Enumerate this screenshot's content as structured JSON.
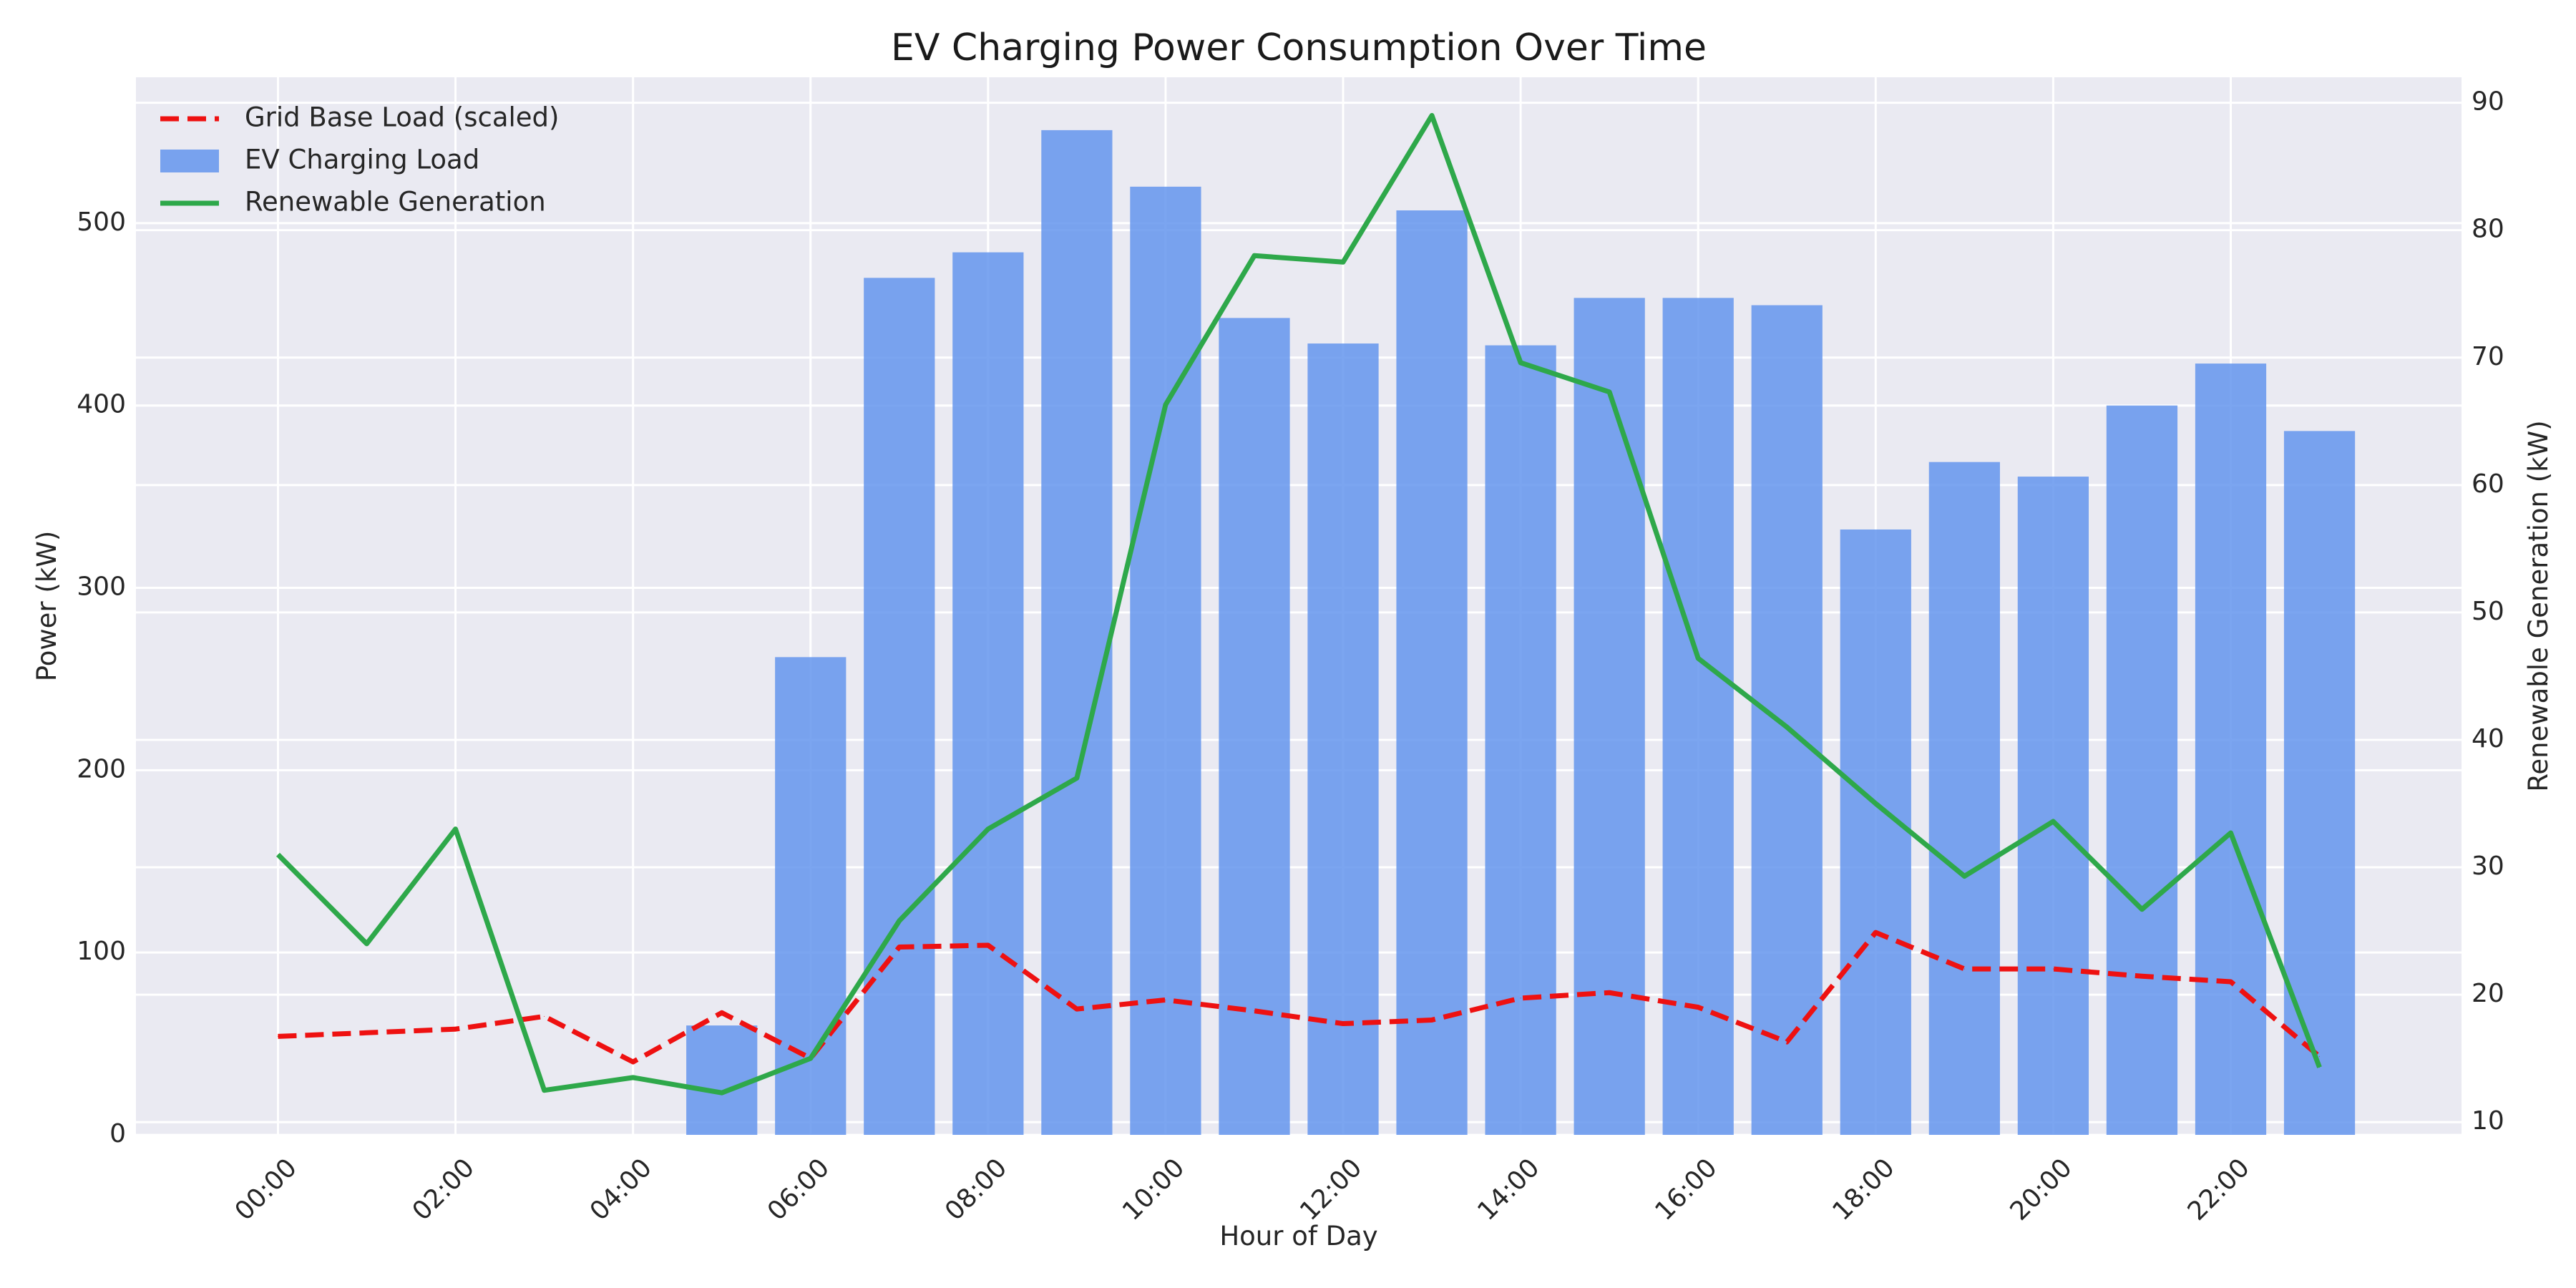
{
  "chart_data": {
    "type": "bar",
    "title": "EV Charging Power Consumption Over Time",
    "xlabel": "Hour of Day",
    "ylabel": "Power (kW)",
    "y2label": "Renewable Generation (kW)",
    "ylim": [
      0,
      580
    ],
    "y2lim": [
      9,
      92
    ],
    "yticks": [
      0,
      100,
      200,
      300,
      400,
      500
    ],
    "y2ticks": [
      10,
      20,
      30,
      40,
      50,
      60,
      70,
      80,
      90
    ],
    "xlim": [
      -1.6,
      24.6
    ],
    "xticks": [
      0,
      2,
      4,
      6,
      8,
      10,
      12,
      14,
      16,
      18,
      20,
      22
    ],
    "xtick_labels": [
      "00:00",
      "02:00",
      "04:00",
      "06:00",
      "08:00",
      "10:00",
      "12:00",
      "14:00",
      "16:00",
      "18:00",
      "20:00",
      "22:00"
    ],
    "x": [
      0,
      1,
      2,
      3,
      4,
      5,
      6,
      7,
      8,
      9,
      10,
      11,
      12,
      13,
      14,
      15,
      16,
      17,
      18,
      19,
      20,
      21,
      22,
      23
    ],
    "grid": true,
    "legend_position": "top-left",
    "legend_order": [
      "Grid Base Load (scaled)",
      "EV Charging Load",
      "Renewable Generation"
    ],
    "series": [
      {
        "name": "EV Charging Load",
        "kind": "bar",
        "axis": "left",
        "color": "#6495ED",
        "values": [
          0,
          0,
          0,
          0,
          0,
          60,
          262,
          470,
          484,
          551,
          520,
          448,
          434,
          507,
          433,
          459,
          459,
          455,
          332,
          369,
          361,
          400,
          423,
          386
        ]
      },
      {
        "name": "Grid Base Load (scaled)",
        "kind": "line",
        "style": "dashed",
        "axis": "left",
        "color": "#EE1111",
        "values": [
          54,
          56,
          58,
          65,
          40,
          67,
          42,
          103,
          104,
          69,
          74,
          68,
          61,
          63,
          75,
          78,
          70,
          51,
          111,
          91,
          91,
          87,
          84,
          43
        ]
      },
      {
        "name": "Renewable Generation",
        "kind": "line",
        "style": "solid",
        "axis": "right",
        "color": "#2EA84A",
        "values": [
          31,
          24,
          33,
          12.5,
          13.5,
          12.3,
          15,
          25.8,
          33,
          37,
          66.3,
          78,
          77.5,
          89,
          69.6,
          67.3,
          46.4,
          41,
          35,
          29.3,
          33.6,
          26.7,
          32.7,
          14.3
        ]
      }
    ]
  }
}
